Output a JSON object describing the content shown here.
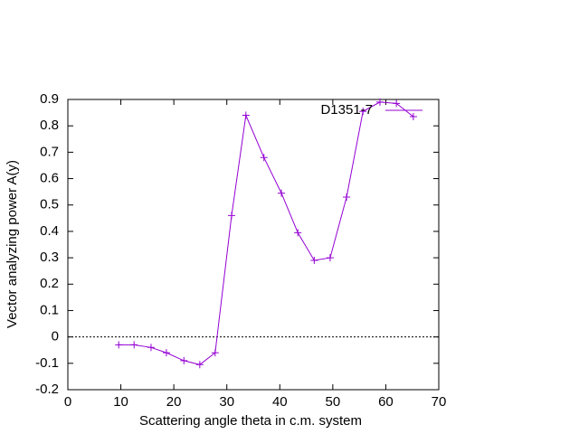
{
  "chart_data": {
    "type": "line",
    "xlabel": "Scattering angle theta in c.m. system",
    "ylabel": "Vector analyzing power A(y)",
    "x": [
      9.6,
      12.5,
      15.7,
      18.6,
      21.9,
      24.9,
      27.8,
      30.9,
      33.6,
      37.0,
      40.3,
      43.4,
      46.5,
      49.5,
      52.6,
      55.7,
      58.9,
      62.0,
      65.2
    ],
    "series": [
      {
        "name": "D1351-7",
        "color": "#9400d3",
        "values": [
          -0.03,
          -0.03,
          -0.04,
          -0.06,
          -0.09,
          -0.105,
          -0.06,
          0.46,
          0.84,
          0.68,
          0.545,
          0.395,
          0.29,
          0.3,
          0.53,
          0.855,
          0.89,
          0.885,
          0.835
        ]
      }
    ],
    "xlim": [
      0,
      70
    ],
    "ylim": [
      -0.2,
      0.9
    ],
    "xticks": [
      0,
      10,
      20,
      30,
      40,
      50,
      60,
      70
    ],
    "yticks": [
      -0.2,
      -0.1,
      0,
      0.1,
      0.2,
      0.3,
      0.4,
      0.5,
      0.6,
      0.7,
      0.8,
      0.9
    ],
    "zero_line": true,
    "legend": "top-right"
  }
}
